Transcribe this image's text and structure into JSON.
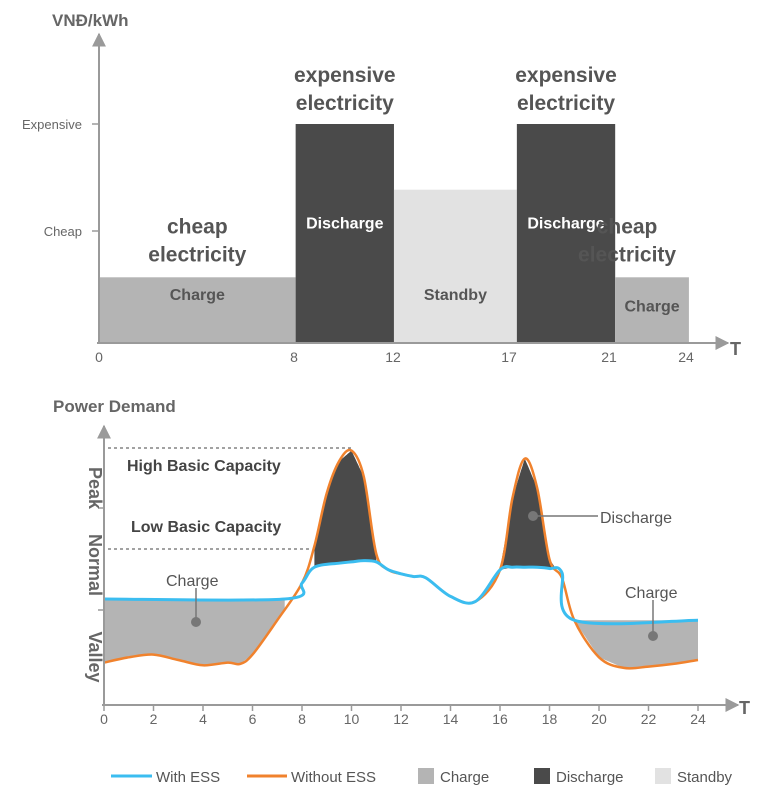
{
  "chart_data": [
    {
      "type": "bar",
      "title": "",
      "ylabel": "VNĐ/kWh",
      "xlabel": "T",
      "y_levels": [
        "Expensive",
        "Cheap"
      ],
      "x_ticks": [
        "0",
        "8",
        "12",
        "17",
        "21",
        "24"
      ],
      "xlim": [
        0,
        24
      ],
      "segments": [
        {
          "start": 0,
          "end": 8,
          "level": 0.3,
          "mode": "charge",
          "label": "Charge",
          "caption": [
            "cheap",
            "electricity"
          ]
        },
        {
          "start": 8,
          "end": 12,
          "level": 1.0,
          "mode": "discharge",
          "label": "Discharge",
          "caption": [
            "expensive",
            "electricity"
          ]
        },
        {
          "start": 12,
          "end": 17,
          "level": 0.7,
          "mode": "standby",
          "label": "Standby",
          "caption": []
        },
        {
          "start": 17,
          "end": 21,
          "level": 1.0,
          "mode": "discharge",
          "label": "Discharge",
          "caption": [
            "expensive",
            "electricity"
          ]
        },
        {
          "start": 21,
          "end": 24,
          "level": 0.3,
          "mode": "charge",
          "label": "Charge",
          "caption": [
            "cheap",
            "electricity"
          ]
        }
      ]
    },
    {
      "type": "line",
      "title": "",
      "ylabel": "Power Demand",
      "xlabel": "T",
      "xlim": [
        0,
        24
      ],
      "ylim": [
        0,
        100
      ],
      "x_ticks": [
        "0",
        "2",
        "4",
        "6",
        "8",
        "10",
        "12",
        "14",
        "16",
        "18",
        "20",
        "22",
        "24"
      ],
      "zones": [
        "Peak",
        "Normal",
        "Valley"
      ],
      "reference_lines": [
        {
          "label": "High Basic Capacity",
          "value": 94
        },
        {
          "label": "Low Basic Capacity",
          "value": 53
        }
      ],
      "series": [
        {
          "name": "With ESS",
          "x": [
            0,
            7.3,
            8,
            8.5,
            9.5,
            10,
            10.5,
            11,
            11.5,
            12,
            12.5,
            13,
            14,
            15,
            16,
            16.5,
            17,
            17.5,
            18,
            18.5,
            19,
            24
          ],
          "y": [
            40,
            40,
            46,
            52,
            53.5,
            54,
            54.5,
            54,
            51,
            49.5,
            48.5,
            48,
            41,
            39,
            51,
            52,
            52,
            52,
            51.5,
            50,
            32,
            32
          ]
        },
        {
          "name": "Without ESS",
          "x": [
            0,
            1,
            2,
            3,
            4,
            5,
            5.5,
            6,
            7,
            8,
            8.5,
            9,
            9.5,
            10,
            10.5,
            11,
            11.5,
            12,
            12.5,
            13,
            14,
            15,
            16,
            16.5,
            17,
            17.5,
            18,
            18.5,
            19,
            20,
            21,
            22,
            23,
            24
          ],
          "y": [
            16,
            18,
            19,
            17,
            15,
            16,
            15.5,
            19,
            32,
            46,
            60,
            80,
            92,
            96,
            86,
            57,
            51,
            49.5,
            48.5,
            48,
            41,
            39,
            51,
            78,
            93,
            82,
            55,
            48,
            32,
            18,
            14,
            14.5,
            15.5,
            17
          ]
        }
      ],
      "annotations": [
        {
          "label": "Charge",
          "x": 3.6,
          "y": 32
        },
        {
          "label": "Discharge",
          "x": 17.4,
          "y": 68
        },
        {
          "label": "Charge",
          "x": 22.2,
          "y": 25
        }
      ]
    }
  ],
  "legend": [
    {
      "label": "With ESS",
      "kind": "line",
      "color": "#3bbdf0"
    },
    {
      "label": "Without ESS",
      "kind": "line",
      "color": "#f0822d"
    },
    {
      "label": "Charge",
      "kind": "box",
      "color": "#b4b4b4"
    },
    {
      "label": "Discharge",
      "kind": "box",
      "color": "#4a4a4a"
    },
    {
      "label": "Standby",
      "kind": "box",
      "color": "#e2e2e2"
    }
  ],
  "colors": {
    "charge": "#b4b4b4",
    "discharge": "#4a4a4a",
    "standby": "#e2e2e2",
    "with_ess": "#3bbdf0",
    "without_ess": "#f0822d",
    "axis": "#9a9a9a"
  }
}
